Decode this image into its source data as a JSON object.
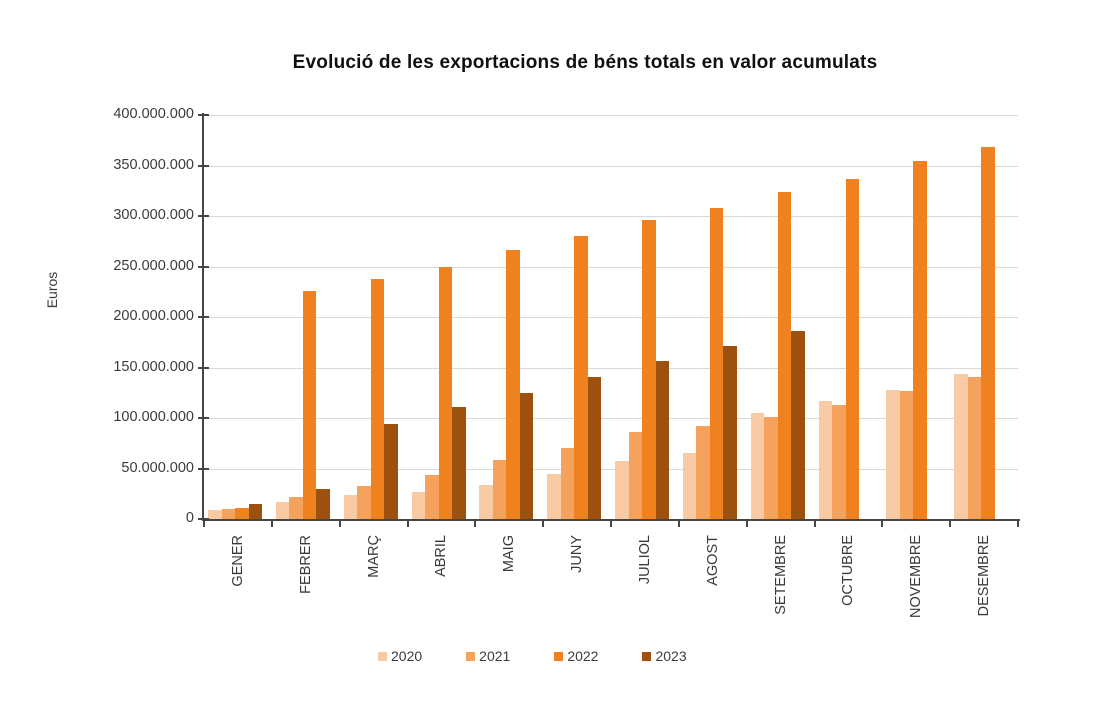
{
  "title": "Evolució de les exportacions de béns totals en valor acumulats",
  "chart_data": {
    "type": "bar",
    "title": "Evolució de les exportacions de béns totals en valor acumulats",
    "xlabel": "",
    "ylabel": "Euros",
    "ylim": [
      0,
      400000000
    ],
    "ytick_step": 50000000,
    "grid": true,
    "legend_position": "bottom",
    "yticks": [
      {
        "value": 0,
        "label": "0"
      },
      {
        "value": 50000000,
        "label": "50.000.000"
      },
      {
        "value": 100000000,
        "label": "100.000.000"
      },
      {
        "value": 150000000,
        "label": "150.000.000"
      },
      {
        "value": 200000000,
        "label": "200.000.000"
      },
      {
        "value": 250000000,
        "label": "250.000.000"
      },
      {
        "value": 300000000,
        "label": "300.000.000"
      },
      {
        "value": 350000000,
        "label": "350.000.000"
      },
      {
        "value": 400000000,
        "label": "400.000.000"
      }
    ],
    "categories": [
      "GENER",
      "FEBRER",
      "MARÇ",
      "ABRIL",
      "MAIG",
      "JUNY",
      "JULIOL",
      "AGOST",
      "SETEMBRE",
      "OCTUBRE",
      "NOVEMBRE",
      "DESEMBRE"
    ],
    "series": [
      {
        "name": "2020",
        "color": "#F8CBA4",
        "values": [
          9000000,
          17000000,
          24000000,
          27000000,
          34000000,
          45000000,
          57000000,
          65000000,
          105000000,
          117000000,
          128000000,
          144000000
        ]
      },
      {
        "name": "2021",
        "color": "#F5A35C",
        "values": [
          10000000,
          22000000,
          33000000,
          44000000,
          58000000,
          70000000,
          86000000,
          92000000,
          101000000,
          113000000,
          127000000,
          141000000
        ]
      },
      {
        "name": "2022",
        "color": "#EF811F",
        "values": [
          11000000,
          226000000,
          238000000,
          250000000,
          266000000,
          280000000,
          296000000,
          308000000,
          324000000,
          337000000,
          354000000,
          368000000
        ]
      },
      {
        "name": "2023",
        "color": "#9E500E",
        "values": [
          15000000,
          30000000,
          94000000,
          111000000,
          125000000,
          141000000,
          156000000,
          171000000,
          186000000,
          null,
          null,
          null
        ]
      }
    ],
    "colors": {
      "gridline": "#d9d9d9",
      "axis": "#454545",
      "tick_text": "#3b3b3b",
      "title_text": "#101010"
    }
  }
}
